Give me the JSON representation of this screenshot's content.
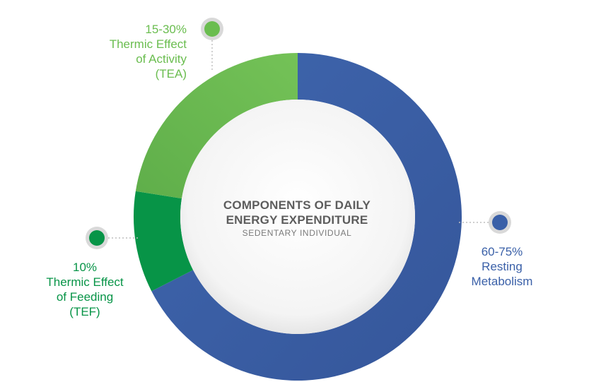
{
  "chart_data": {
    "type": "pie",
    "title": "COMPONENTS OF DAILY ENERGY EXPENDITURE",
    "subtitle": "SEDENTARY INDIVIDUAL",
    "title_lines": [
      "COMPONENTS OF DAILY",
      "ENERGY EXPENDITURE"
    ],
    "legend": "none",
    "slices": [
      {
        "key": "rm",
        "value": 67.5,
        "range": "60-75%",
        "label_lines": [
          "60-75%",
          "Resting",
          "Metabolism"
        ],
        "color": "#3a60a8"
      },
      {
        "key": "tef",
        "value": 10,
        "range": "10%",
        "label_lines": [
          "10%",
          "Thermic Effect",
          "of Feeding",
          "(TEF)"
        ],
        "color": "#079447"
      },
      {
        "key": "tea",
        "value": 22.5,
        "range": "15-30%",
        "label_lines": [
          "15-30%",
          "Thermic Effect",
          "of Activity",
          "(TEA)"
        ],
        "color": "#6abd4f"
      }
    ]
  },
  "colors": {
    "title": "#5d5d5d",
    "subtitle": "#7a7a7a",
    "marker_ring": "#d9d9d9",
    "leader_line": "#bdbdbd"
  }
}
